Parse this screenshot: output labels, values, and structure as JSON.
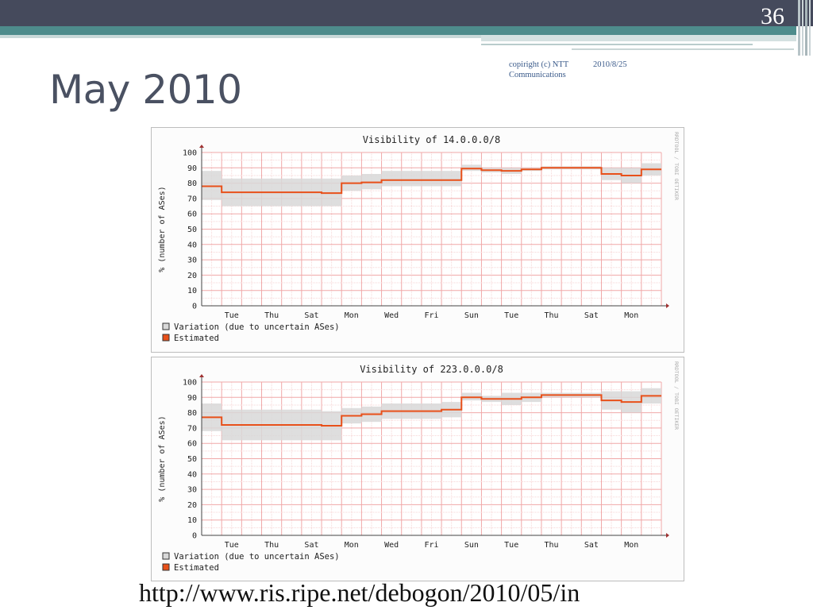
{
  "slide": {
    "number": "36",
    "title": "May 2010",
    "copyright": "copiright (c) NTT Communications",
    "date": "2010/8/25",
    "url": "http://www.ris.ripe.net/debogon/2010/05/in"
  },
  "theme": {
    "dark_bar": "#454a5c",
    "teal_bar": "#4e8c8c",
    "title_color": "#4a5162",
    "estimated_color": "#e8501a",
    "variation_color": "#d8d8d8",
    "grid_color": "#f0b8b8"
  },
  "chart_data": [
    {
      "type": "area",
      "title": "Visibility of 14.0.0.0/8",
      "ylabel": "% (number of ASes)",
      "watermark": "RRDTOOL / TOBI OETIKER",
      "ylim": [
        0,
        100
      ],
      "yticks": [
        0,
        10,
        20,
        30,
        40,
        50,
        60,
        70,
        80,
        90,
        100
      ],
      "xlim": [
        0,
        23
      ],
      "xtick_labels": [
        "Tue",
        "Thu",
        "Sat",
        "Mon",
        "Wed",
        "Fri",
        "Sun",
        "Tue",
        "Thu",
        "Sat",
        "Mon"
      ],
      "xtick_positions": [
        1.5,
        3.5,
        5.5,
        7.5,
        9.5,
        11.5,
        13.5,
        15.5,
        17.5,
        19.5,
        21.5
      ],
      "legend": [
        "Variation (due to uncertain ASes)",
        "Estimated"
      ],
      "steps": [
        {
          "x0": 0,
          "x1": 1,
          "est": 78,
          "lo": 69,
          "hi": 88
        },
        {
          "x0": 1,
          "x1": 6,
          "est": 74,
          "lo": 65,
          "hi": 83
        },
        {
          "x0": 6,
          "x1": 7,
          "est": 73.5,
          "lo": 65,
          "hi": 83
        },
        {
          "x0": 7,
          "x1": 8,
          "est": 80,
          "lo": 75,
          "hi": 85
        },
        {
          "x0": 8,
          "x1": 9,
          "est": 80.5,
          "lo": 76,
          "hi": 86
        },
        {
          "x0": 9,
          "x1": 13,
          "est": 82,
          "lo": 78,
          "hi": 88
        },
        {
          "x0": 13,
          "x1": 14,
          "est": 89.5,
          "lo": 88,
          "hi": 92
        },
        {
          "x0": 14,
          "x1": 15,
          "est": 88.5,
          "lo": 87,
          "hi": 90
        },
        {
          "x0": 15,
          "x1": 16,
          "est": 88,
          "lo": 86,
          "hi": 90
        },
        {
          "x0": 16,
          "x1": 17,
          "est": 89,
          "lo": 88,
          "hi": 90
        },
        {
          "x0": 17,
          "x1": 20,
          "est": 90,
          "lo": 89,
          "hi": 91
        },
        {
          "x0": 20,
          "x1": 21,
          "est": 86,
          "lo": 82,
          "hi": 90
        },
        {
          "x0": 21,
          "x1": 22,
          "est": 85,
          "lo": 80,
          "hi": 90
        },
        {
          "x0": 22,
          "x1": 23,
          "est": 89,
          "lo": 85,
          "hi": 93
        }
      ]
    },
    {
      "type": "area",
      "title": "Visibility of 223.0.0.0/8",
      "ylabel": "% (number of ASes)",
      "watermark": "RRDTOOL / TOBI OETIKER",
      "ylim": [
        0,
        100
      ],
      "yticks": [
        0,
        10,
        20,
        30,
        40,
        50,
        60,
        70,
        80,
        90,
        100
      ],
      "xlim": [
        0,
        23
      ],
      "xtick_labels": [
        "Tue",
        "Thu",
        "Sat",
        "Mon",
        "Wed",
        "Fri",
        "Sun",
        "Tue",
        "Thu",
        "Sat",
        "Mon"
      ],
      "xtick_positions": [
        1.5,
        3.5,
        5.5,
        7.5,
        9.5,
        11.5,
        13.5,
        15.5,
        17.5,
        19.5,
        21.5
      ],
      "legend": [
        "Variation (due to uncertain ASes)",
        "Estimated"
      ],
      "steps": [
        {
          "x0": 0,
          "x1": 1,
          "est": 77,
          "lo": 68,
          "hi": 86
        },
        {
          "x0": 1,
          "x1": 6,
          "est": 72,
          "lo": 62,
          "hi": 82
        },
        {
          "x0": 6,
          "x1": 7,
          "est": 71.5,
          "lo": 62,
          "hi": 81
        },
        {
          "x0": 7,
          "x1": 8,
          "est": 78,
          "lo": 73,
          "hi": 83
        },
        {
          "x0": 8,
          "x1": 9,
          "est": 79,
          "lo": 74,
          "hi": 84
        },
        {
          "x0": 9,
          "x1": 12,
          "est": 81,
          "lo": 76,
          "hi": 86
        },
        {
          "x0": 12,
          "x1": 13,
          "est": 82,
          "lo": 77,
          "hi": 87
        },
        {
          "x0": 13,
          "x1": 14,
          "est": 90,
          "lo": 88,
          "hi": 93
        },
        {
          "x0": 14,
          "x1": 15,
          "est": 89,
          "lo": 87,
          "hi": 91
        },
        {
          "x0": 15,
          "x1": 16,
          "est": 89,
          "lo": 85,
          "hi": 93
        },
        {
          "x0": 16,
          "x1": 17,
          "est": 90,
          "lo": 87,
          "hi": 93
        },
        {
          "x0": 17,
          "x1": 20,
          "est": 91.5,
          "lo": 90,
          "hi": 93
        },
        {
          "x0": 20,
          "x1": 21,
          "est": 88,
          "lo": 82,
          "hi": 94
        },
        {
          "x0": 21,
          "x1": 22,
          "est": 87,
          "lo": 80,
          "hi": 94
        },
        {
          "x0": 22,
          "x1": 23,
          "est": 91,
          "lo": 86,
          "hi": 96
        }
      ]
    }
  ]
}
